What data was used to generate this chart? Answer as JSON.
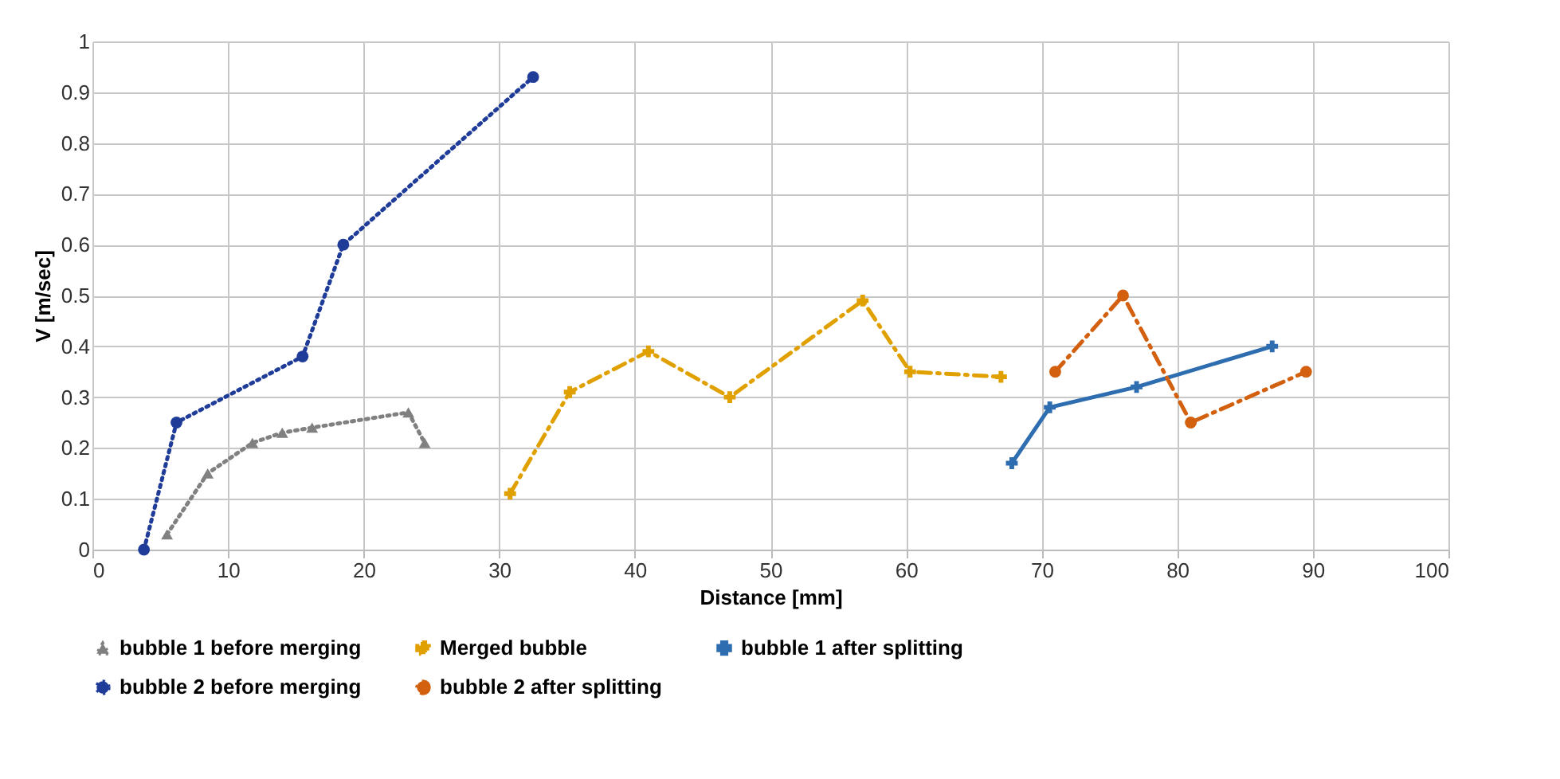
{
  "chart_data": {
    "type": "line",
    "xlabel": "Distance [mm]",
    "ylabel": "V [m/sec]",
    "xlim": [
      0,
      100
    ],
    "xticks": [
      0,
      10,
      20,
      30,
      40,
      50,
      60,
      70,
      80,
      90,
      100
    ],
    "ylim": [
      0,
      1
    ],
    "yticks": [
      0,
      0.1,
      0.2,
      0.3,
      0.4,
      0.5,
      0.6,
      0.7,
      0.8,
      0.9,
      1
    ],
    "grid": true,
    "legend": "bottom",
    "series": [
      {
        "name": "bubble 1 before merging",
        "color": "#808080",
        "marker": "triangle",
        "line_style": "dotted",
        "x": [
          5.5,
          8.5,
          11.8,
          14,
          16.2,
          23.3,
          24.5
        ],
        "values": [
          0.03,
          0.15,
          0.21,
          0.23,
          0.24,
          0.27,
          0.21
        ]
      },
      {
        "name": "Merged bubble",
        "color": "#e0a000",
        "marker": "cross",
        "line_style": "dashed",
        "x": [
          30.8,
          35.2,
          41,
          47,
          56.8,
          60.3,
          67
        ],
        "values": [
          0.11,
          0.31,
          0.39,
          0.3,
          0.49,
          0.35,
          0.34
        ]
      },
      {
        "name": "bubble 1 after splitting",
        "color": "#2e6db0",
        "marker": "cross",
        "line_style": "solid",
        "x": [
          67.8,
          70.6,
          77,
          87
        ],
        "values": [
          0.17,
          0.28,
          0.32,
          0.4
        ]
      },
      {
        "name": "bubble 2 before merging",
        "color": "#1f3c99",
        "marker": "circle",
        "line_style": "dotted",
        "x": [
          3.8,
          6.2,
          15.5,
          18.5,
          32.5
        ],
        "values": [
          0,
          0.25,
          0.38,
          0.6,
          0.93
        ]
      },
      {
        "name": "bubble 2 after splitting",
        "color": "#d2600f",
        "marker": "circle",
        "line_style": "dashed",
        "x": [
          71,
          76,
          81,
          89.5
        ],
        "values": [
          0.35,
          0.5,
          0.25,
          0.35
        ]
      }
    ]
  }
}
